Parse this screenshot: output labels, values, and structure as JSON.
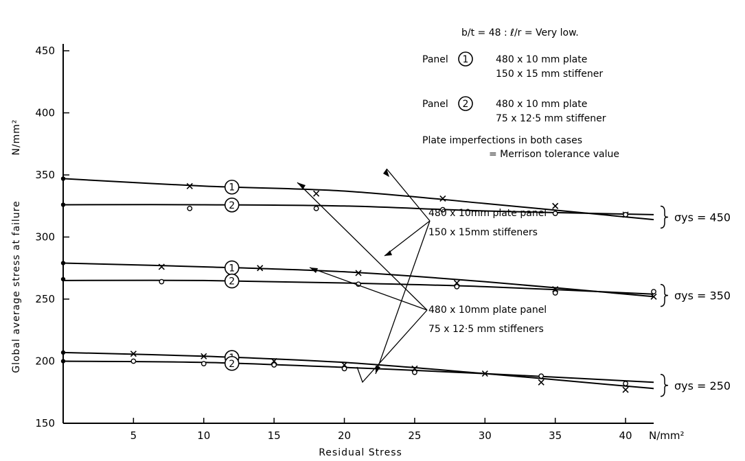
{
  "chart_data": {
    "type": "line",
    "xlabel": "Residual Stress",
    "xunit": "N/mm²",
    "ylabel": "Global average stress at failure",
    "yunit": "N/mm²",
    "xlim": [
      0,
      42
    ],
    "ylim": [
      150,
      450
    ],
    "xticks": [
      "5",
      "10",
      "15",
      "20",
      "25",
      "30",
      "35",
      "40"
    ],
    "yticks": [
      "150",
      "200",
      "250",
      "300",
      "350",
      "400",
      "450"
    ],
    "grid": false,
    "notes": [
      "b/t = 48 : ℓ/r = Very low.",
      "480 x 10 mm plate",
      "150 x 15 mm stiffener",
      "480 x 10 mm plate",
      "75 x 12·5 mm stiffener",
      "Plate imperfections in both cases",
      "= Merrison tolerance value"
    ],
    "panel_labels": [
      "Panel",
      "1",
      "Panel",
      "2"
    ],
    "callouts": [
      "480 x 10mm plate panel",
      "150 x 15mm stiffeners",
      "480 x 10mm plate panel",
      "75 x 12·5 mm stiffeners"
    ],
    "curve_labels": [
      "1",
      "2"
    ],
    "groups": [
      {
        "sigma_label": "σys = 450",
        "series": [
          {
            "panel": "1",
            "marker": "x",
            "curve": [
              [
                0,
                347
              ],
              [
                10,
                341
              ],
              [
                20,
                337
              ],
              [
                30,
                327
              ],
              [
                42,
                314
              ]
            ],
            "points": [
              [
                0,
                347
              ],
              [
                9,
                341
              ],
              [
                18,
                335
              ],
              [
                27,
                331
              ],
              [
                35,
                325
              ],
              [
                40,
                318
              ]
            ]
          },
          {
            "panel": "2",
            "marker": "o",
            "curve": [
              [
                0,
                326
              ],
              [
                10,
                326
              ],
              [
                20,
                325
              ],
              [
                30,
                321
              ],
              [
                42,
                318
              ]
            ],
            "points": [
              [
                0,
                326
              ],
              [
                9,
                323
              ],
              [
                18,
                323
              ],
              [
                27,
                322
              ],
              [
                35,
                319
              ],
              [
                40,
                318
              ]
            ]
          }
        ]
      },
      {
        "sigma_label": "σys = 350",
        "series": [
          {
            "panel": "1",
            "marker": "x",
            "curve": [
              [
                0,
                279
              ],
              [
                10,
                276
              ],
              [
                20,
                272
              ],
              [
                30,
                264
              ],
              [
                42,
                252
              ]
            ],
            "points": [
              [
                0,
                279
              ],
              [
                7,
                276
              ],
              [
                14,
                275
              ],
              [
                21,
                271
              ],
              [
                28,
                263
              ],
              [
                35,
                258
              ],
              [
                42,
                252
              ]
            ]
          },
          {
            "panel": "2",
            "marker": "o",
            "curve": [
              [
                0,
                265
              ],
              [
                10,
                265
              ],
              [
                20,
                263
              ],
              [
                30,
                260
              ],
              [
                42,
                254
              ]
            ],
            "points": [
              [
                0,
                266
              ],
              [
                7,
                264
              ],
              [
                21,
                262
              ],
              [
                28,
                260
              ],
              [
                35,
                255
              ],
              [
                42,
                256
              ]
            ]
          }
        ]
      },
      {
        "sigma_label": "σys = 250",
        "series": [
          {
            "panel": "1",
            "marker": "x",
            "curve": [
              [
                0,
                207
              ],
              [
                10,
                204
              ],
              [
                20,
                199
              ],
              [
                30,
                190
              ],
              [
                40,
                180
              ],
              [
                42,
                178
              ]
            ],
            "points": [
              [
                0,
                207
              ],
              [
                5,
                206
              ],
              [
                10,
                204
              ],
              [
                15,
                200
              ],
              [
                20,
                197
              ],
              [
                25,
                194
              ],
              [
                30,
                190
              ],
              [
                34,
                183
              ],
              [
                40,
                177
              ]
            ]
          },
          {
            "panel": "2",
            "marker": "o",
            "curve": [
              [
                0,
                200
              ],
              [
                10,
                199
              ],
              [
                20,
                195
              ],
              [
                30,
                190
              ],
              [
                42,
                183
              ]
            ],
            "points": [
              [
                0,
                200
              ],
              [
                5,
                200
              ],
              [
                10,
                198
              ],
              [
                15,
                197
              ],
              [
                20,
                194
              ],
              [
                25,
                191
              ],
              [
                34,
                188
              ],
              [
                40,
                182
              ]
            ]
          }
        ]
      }
    ]
  }
}
